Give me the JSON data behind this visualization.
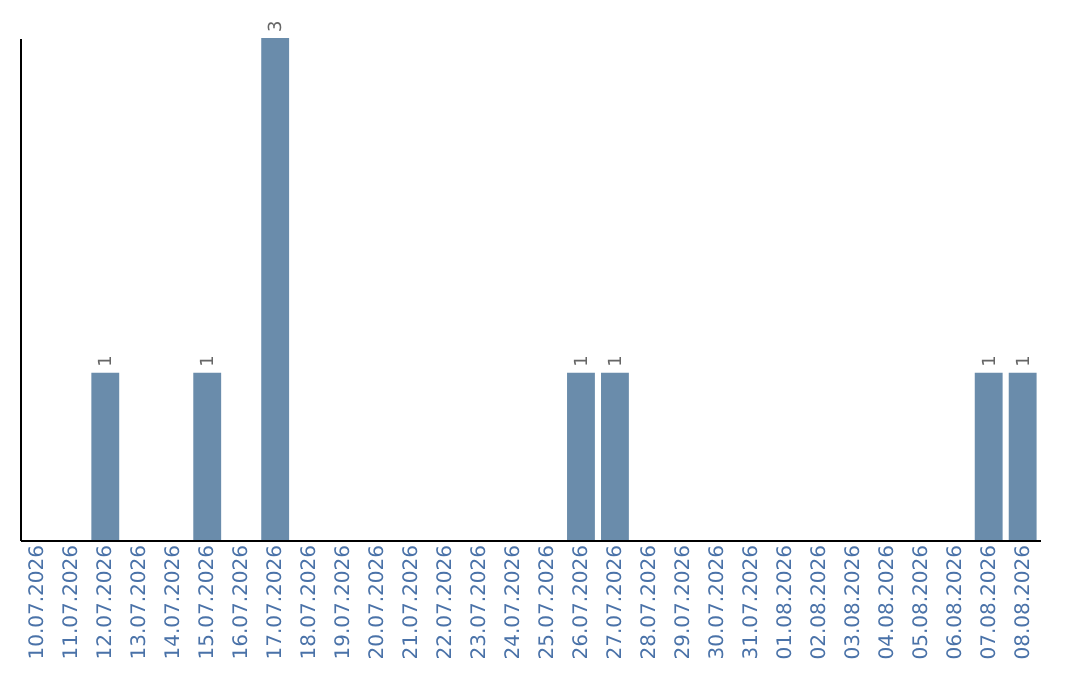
{
  "chart_data": {
    "type": "bar",
    "categories": [
      "10.07.2026",
      "11.07.2026",
      "12.07.2026",
      "13.07.2026",
      "14.07.2026",
      "15.07.2026",
      "16.07.2026",
      "17.07.2026",
      "18.07.2026",
      "19.07.2026",
      "20.07.2026",
      "21.07.2026",
      "22.07.2026",
      "23.07.2026",
      "24.07.2026",
      "25.07.2026",
      "26.07.2026",
      "27.07.2026",
      "28.07.2026",
      "29.07.2026",
      "30.07.2026",
      "31.07.2026",
      "01.08.2026",
      "02.08.2026",
      "03.08.2026",
      "04.08.2026",
      "05.08.2026",
      "06.08.2026",
      "07.08.2026",
      "08.08.2026"
    ],
    "values": [
      0,
      0,
      1,
      0,
      0,
      1,
      0,
      3,
      0,
      0,
      0,
      0,
      0,
      0,
      0,
      0,
      1,
      1,
      0,
      0,
      0,
      0,
      0,
      0,
      0,
      0,
      0,
      0,
      1,
      1
    ],
    "value_labels": [
      null,
      null,
      "1",
      null,
      null,
      "1",
      null,
      "3",
      null,
      null,
      null,
      null,
      null,
      null,
      null,
      null,
      "1",
      "1",
      null,
      null,
      null,
      null,
      null,
      null,
      null,
      null,
      null,
      null,
      "1",
      "1"
    ],
    "color": "#6a8cab",
    "grid": false,
    "tick_labels": "x"
  }
}
